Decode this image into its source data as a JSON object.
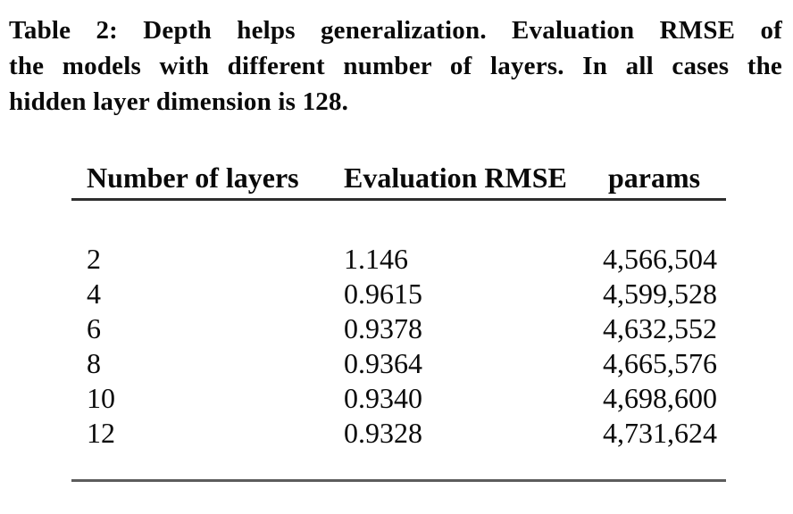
{
  "caption": {
    "label": "Table 2:",
    "lines": [
      "Table 2: Depth helps generalization. Evaluation RMSE of",
      "the models with different number of layers. In all cases the",
      "hidden layer dimension is 128."
    ]
  },
  "table": {
    "columns": [
      "Number of layers",
      "Evaluation RMSE",
      "params"
    ],
    "rows": [
      {
        "layers": "2",
        "rmse": "1.146",
        "params": "4,566,504"
      },
      {
        "layers": "4",
        "rmse": "0.9615",
        "params": "4,599,528"
      },
      {
        "layers": "6",
        "rmse": "0.9378",
        "params": "4,632,552"
      },
      {
        "layers": "8",
        "rmse": "0.9364",
        "params": "4,665,576"
      },
      {
        "layers": "10",
        "rmse": "0.9340",
        "params": "4,698,600"
      },
      {
        "layers": "12",
        "rmse": "0.9328",
        "params": "4,731,624"
      }
    ]
  },
  "colors": {
    "text": "#0a0a0a",
    "background": "#ffffff",
    "header_rule": "#2e2e2e",
    "bottom_rule": "#5c5c5c"
  }
}
